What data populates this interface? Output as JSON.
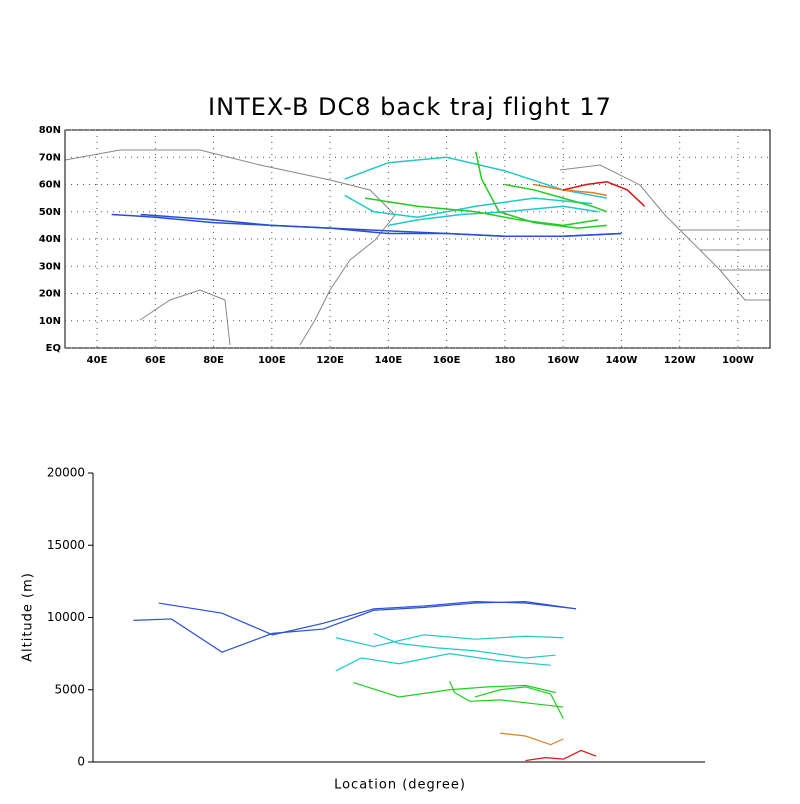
{
  "chart_data": [
    {
      "type": "map",
      "title": "INTEX-B DC8 back traj flight 17",
      "xlim": [
        29,
        271
      ],
      "ylim": [
        0,
        80
      ],
      "grid": true,
      "xticks": [
        {
          "value": 40,
          "label": "40E"
        },
        {
          "value": 60,
          "label": "60E"
        },
        {
          "value": 80,
          "label": "80E"
        },
        {
          "value": 100,
          "label": "100E"
        },
        {
          "value": 120,
          "label": "120E"
        },
        {
          "value": 140,
          "label": "140E"
        },
        {
          "value": 160,
          "label": "160E"
        },
        180,
        {
          "value": 200,
          "label": "160W"
        },
        {
          "value": 220,
          "label": "140W"
        },
        {
          "value": 240,
          "label": "120W"
        },
        {
          "value": 260,
          "label": "100W"
        }
      ],
      "yticks": [
        {
          "value": 0,
          "label": "EQ"
        },
        {
          "value": 10,
          "label": "10N"
        },
        {
          "value": 20,
          "label": "20N"
        },
        {
          "value": 30,
          "label": "30N"
        },
        {
          "value": 40,
          "label": "40N"
        },
        {
          "value": 50,
          "label": "50N"
        },
        {
          "value": 60,
          "label": "60N"
        },
        {
          "value": 70,
          "label": "70N"
        },
        {
          "value": 80,
          "label": "80N"
        }
      ],
      "series": [
        {
          "color": "#2a4fd6",
          "x": [
            45,
            60,
            80,
            100,
            120,
            140,
            160,
            180,
            200,
            220
          ],
          "y": [
            49,
            48,
            46,
            45,
            44,
            43,
            42,
            41,
            41,
            42
          ],
          "alt": [
            9800,
            9900,
            7600,
            8900,
            9200,
            10500,
            10700,
            11000,
            11100,
            10600
          ]
        },
        {
          "color": "#2a4fd6",
          "x": [
            55,
            80,
            100,
            120,
            140,
            160,
            180,
            200,
            220
          ],
          "y": [
            49,
            47,
            45,
            44,
            42,
            42,
            41,
            41,
            42
          ],
          "alt": [
            11000,
            10300,
            8800,
            9600,
            10600,
            10800,
            11100,
            11000,
            10600
          ]
        },
        {
          "color": "#22c8c8",
          "x": [
            125,
            140,
            160,
            180,
            200,
            215
          ],
          "y": [
            62,
            68,
            70,
            65,
            58,
            55
          ],
          "alt": [
            8600,
            8000,
            8800,
            8500,
            8700,
            8600
          ]
        },
        {
          "color": "#22c8c8",
          "x": [
            125,
            135,
            150,
            170,
            190,
            210
          ],
          "y": [
            56,
            50,
            48,
            52,
            55,
            53
          ],
          "alt": [
            6300,
            7200,
            6800,
            7500,
            7000,
            6700
          ]
        },
        {
          "color": "#22c8c8",
          "x": [
            140,
            150,
            165,
            180,
            200,
            212
          ],
          "y": [
            45,
            47,
            49,
            50,
            52,
            50
          ],
          "alt": [
            8900,
            8200,
            7900,
            7700,
            7200,
            7400
          ]
        },
        {
          "color": "#22cc22",
          "x": [
            132,
            150,
            170,
            185,
            200,
            212
          ],
          "y": [
            55,
            52,
            50,
            47,
            45,
            47
          ],
          "alt": [
            5500,
            4500,
            5000,
            5200,
            5300,
            4800
          ]
        },
        {
          "color": "#22cc22",
          "x": [
            170,
            172,
            178,
            190,
            205,
            215
          ],
          "y": [
            72,
            62,
            50,
            46,
            44,
            45
          ],
          "alt": [
            5600,
            4800,
            4200,
            4300,
            4000,
            3800
          ]
        },
        {
          "color": "#22cc22",
          "x": [
            180,
            190,
            200,
            210,
            215
          ],
          "y": [
            60,
            58,
            55,
            52,
            50
          ],
          "alt": [
            4500,
            5000,
            5200,
            4700,
            3000
          ]
        },
        {
          "color": "#e08020",
          "x": [
            190,
            200,
            210,
            215
          ],
          "y": [
            60,
            58,
            57,
            56
          ],
          "alt": [
            2000,
            1800,
            1200,
            1600
          ]
        },
        {
          "color": "#e01010",
          "x": [
            200,
            208,
            215,
            222,
            228
          ],
          "y": [
            58,
            60,
            61,
            58,
            52
          ],
          "alt": [
            100,
            300,
            200,
            800,
            400
          ]
        }
      ]
    },
    {
      "type": "altitude",
      "xlabel": "Location (degree)",
      "ylabel": "Altitude (m)",
      "xlim": [
        29,
        271
      ],
      "ylim": [
        0,
        20000
      ],
      "yticks": [
        0,
        5000,
        10000,
        15000,
        20000
      ]
    }
  ]
}
